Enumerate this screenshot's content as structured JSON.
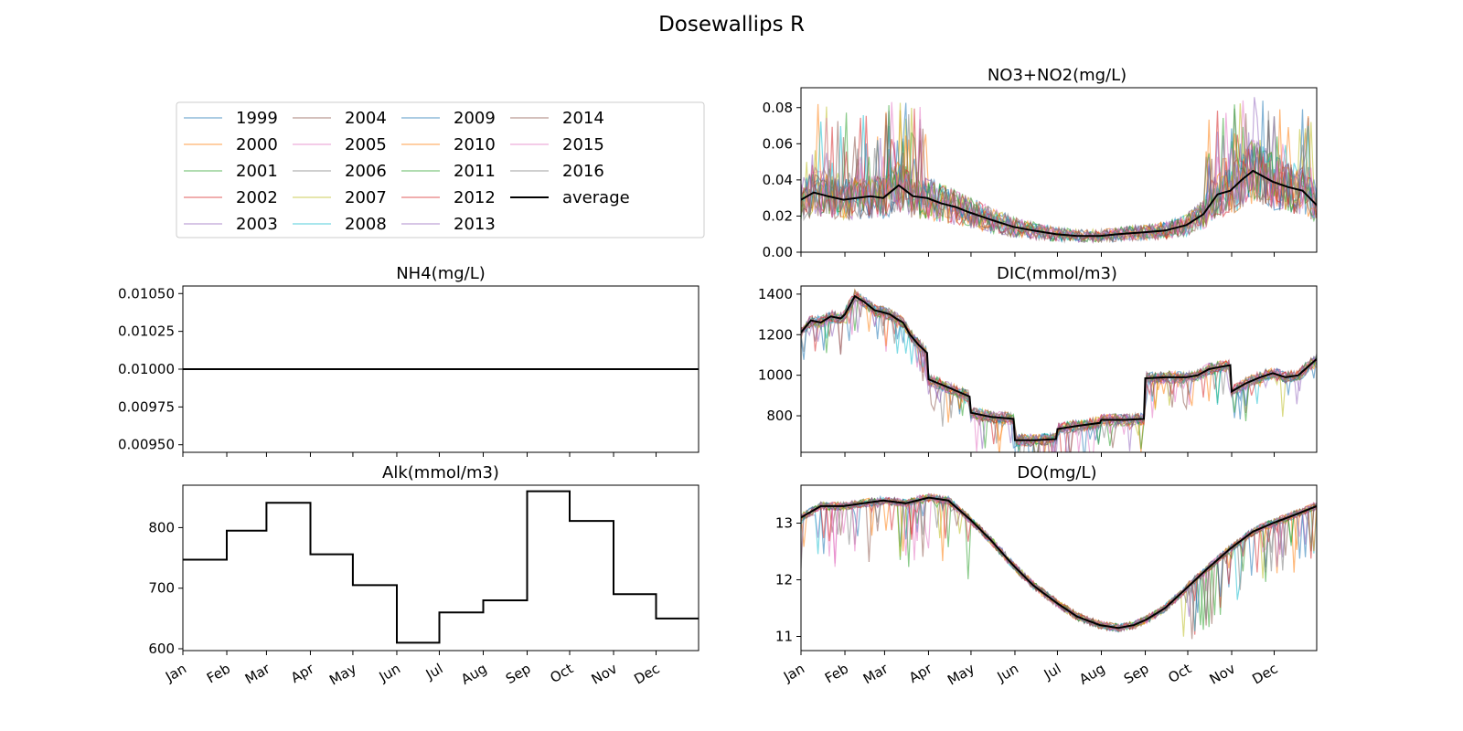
{
  "figure": {
    "title": "Dosewallips R"
  },
  "colors": {
    "years": [
      "#1f77b4",
      "#ff7f0e",
      "#2ca02c",
      "#d62728",
      "#9467bd",
      "#8c564b",
      "#e377c2",
      "#7f7f7f",
      "#bcbd22",
      "#17becf",
      "#1f77b4",
      "#ff7f0e",
      "#2ca02c",
      "#d62728",
      "#9467bd",
      "#8c564b",
      "#e377c2",
      "#7f7f7f"
    ],
    "average": "#000000"
  },
  "legend": {
    "placement": "upper-left panel",
    "entries": [
      "1999",
      "2000",
      "2001",
      "2002",
      "2003",
      "2004",
      "2005",
      "2006",
      "2007",
      "2008",
      "2009",
      "2010",
      "2011",
      "2012",
      "2013",
      "2014",
      "2015",
      "2016",
      "average"
    ]
  },
  "chart_data": [
    {
      "id": "no3",
      "type": "line",
      "title": "NO3+NO2(mg/L)",
      "xlabel": "",
      "ylabel": "",
      "x_tick_labels": [
        "Jan",
        "Feb",
        "Mar",
        "Apr",
        "May",
        "Jun",
        "Jul",
        "Aug",
        "Sep",
        "Oct",
        "Nov",
        "Dec"
      ],
      "yticks": [
        "0.00",
        "0.02",
        "0.04",
        "0.06",
        "0.08"
      ],
      "ylim": [
        0.0,
        0.091
      ],
      "average": {
        "name": "average",
        "x_day": [
          1,
          10,
          20,
          31,
          40,
          50,
          59,
          70,
          80,
          90,
          100,
          110,
          120,
          135,
          151,
          165,
          181,
          196,
          212,
          225,
          243,
          258,
          273,
          285,
          295,
          304,
          312,
          320,
          334,
          345,
          355,
          365
        ],
        "y": [
          0.029,
          0.033,
          0.031,
          0.029,
          0.03,
          0.031,
          0.03,
          0.037,
          0.031,
          0.03,
          0.027,
          0.025,
          0.022,
          0.018,
          0.014,
          0.012,
          0.01,
          0.009,
          0.009,
          0.01,
          0.011,
          0.012,
          0.015,
          0.021,
          0.032,
          0.034,
          0.04,
          0.045,
          0.039,
          0.036,
          0.034,
          0.026
        ]
      },
      "note_years": "18 yearly series vary around the average; spikes up to ~0.087 in Jan-Mar and Oct-Dec"
    },
    {
      "id": "nh4",
      "type": "line",
      "title": "NH4(mg/L)",
      "xlabel": "",
      "ylabel": "",
      "yticks": [
        "0.00950",
        "0.00975",
        "0.01000",
        "0.01025",
        "0.01050"
      ],
      "ylim": [
        0.00945,
        0.01055
      ],
      "average": {
        "name": "average",
        "x_day": [
          1,
          365
        ],
        "y": [
          0.01,
          0.01
        ]
      }
    },
    {
      "id": "alk",
      "type": "line",
      "title": "Alk(mmol/m3)",
      "xlabel": "",
      "ylabel": "",
      "x_tick_labels": [
        "Jan",
        "Feb",
        "Mar",
        "Apr",
        "May",
        "Jun",
        "Jul",
        "Aug",
        "Sep",
        "Oct",
        "Nov",
        "Dec"
      ],
      "yticks": [
        "600",
        "700",
        "800"
      ],
      "ylim": [
        597,
        870
      ],
      "monthly_steps": [
        747,
        795,
        841,
        756,
        705,
        610,
        660,
        680,
        860,
        811,
        690,
        650
      ]
    },
    {
      "id": "dic",
      "type": "line",
      "title": "DIC(mmol/m3)",
      "xlabel": "",
      "ylabel": "",
      "yticks": [
        "800",
        "1000",
        "1200",
        "1400"
      ],
      "ylim": [
        620,
        1440
      ],
      "average": {
        "name": "average",
        "x_day": [
          1,
          8,
          15,
          22,
          29,
          32,
          39,
          46,
          53,
          59,
          64,
          68,
          73,
          78,
          84,
          90,
          91,
          105,
          120,
          121,
          135,
          151,
          152,
          166,
          181,
          182,
          196,
          212,
          213,
          230,
          243,
          244,
          258,
          273,
          281,
          289,
          296,
          304,
          305,
          315,
          325,
          334,
          343,
          352,
          360,
          365
        ],
        "y": [
          1210,
          1270,
          1260,
          1290,
          1280,
          1300,
          1390,
          1360,
          1320,
          1310,
          1300,
          1280,
          1260,
          1200,
          1150,
          1110,
          980,
          940,
          895,
          815,
          795,
          785,
          680,
          680,
          685,
          735,
          750,
          765,
          780,
          780,
          785,
          985,
          990,
          990,
          1000,
          1030,
          1040,
          1050,
          920,
          960,
          990,
          1010,
          990,
          1000,
          1050,
          1080
        ]
      },
      "note_years": "18 yearly series follow the same step pattern with noise"
    },
    {
      "id": "do",
      "type": "line",
      "title": "DO(mg/L)",
      "xlabel": "",
      "ylabel": "",
      "x_tick_labels": [
        "Jan",
        "Feb",
        "Mar",
        "Apr",
        "May",
        "Jun",
        "Jul",
        "Aug",
        "Sep",
        "Oct",
        "Nov",
        "Dec"
      ],
      "yticks": [
        "11",
        "12",
        "13"
      ],
      "ylim": [
        10.75,
        13.67
      ],
      "average": {
        "name": "average",
        "x_day": [
          1,
          15,
          31,
          45,
          59,
          75,
          91,
          105,
          121,
          135,
          151,
          165,
          181,
          196,
          212,
          225,
          236,
          245,
          258,
          273,
          288,
          304,
          320,
          334,
          350,
          365
        ],
        "y": [
          13.1,
          13.3,
          13.3,
          13.35,
          13.4,
          13.35,
          13.45,
          13.4,
          13.05,
          12.7,
          12.25,
          11.9,
          11.6,
          11.35,
          11.2,
          11.15,
          11.2,
          11.3,
          11.5,
          11.85,
          12.2,
          12.55,
          12.85,
          13.0,
          13.15,
          13.3
        ]
      },
      "note_years": "18 yearly series close to the average with downward noise spikes"
    }
  ]
}
